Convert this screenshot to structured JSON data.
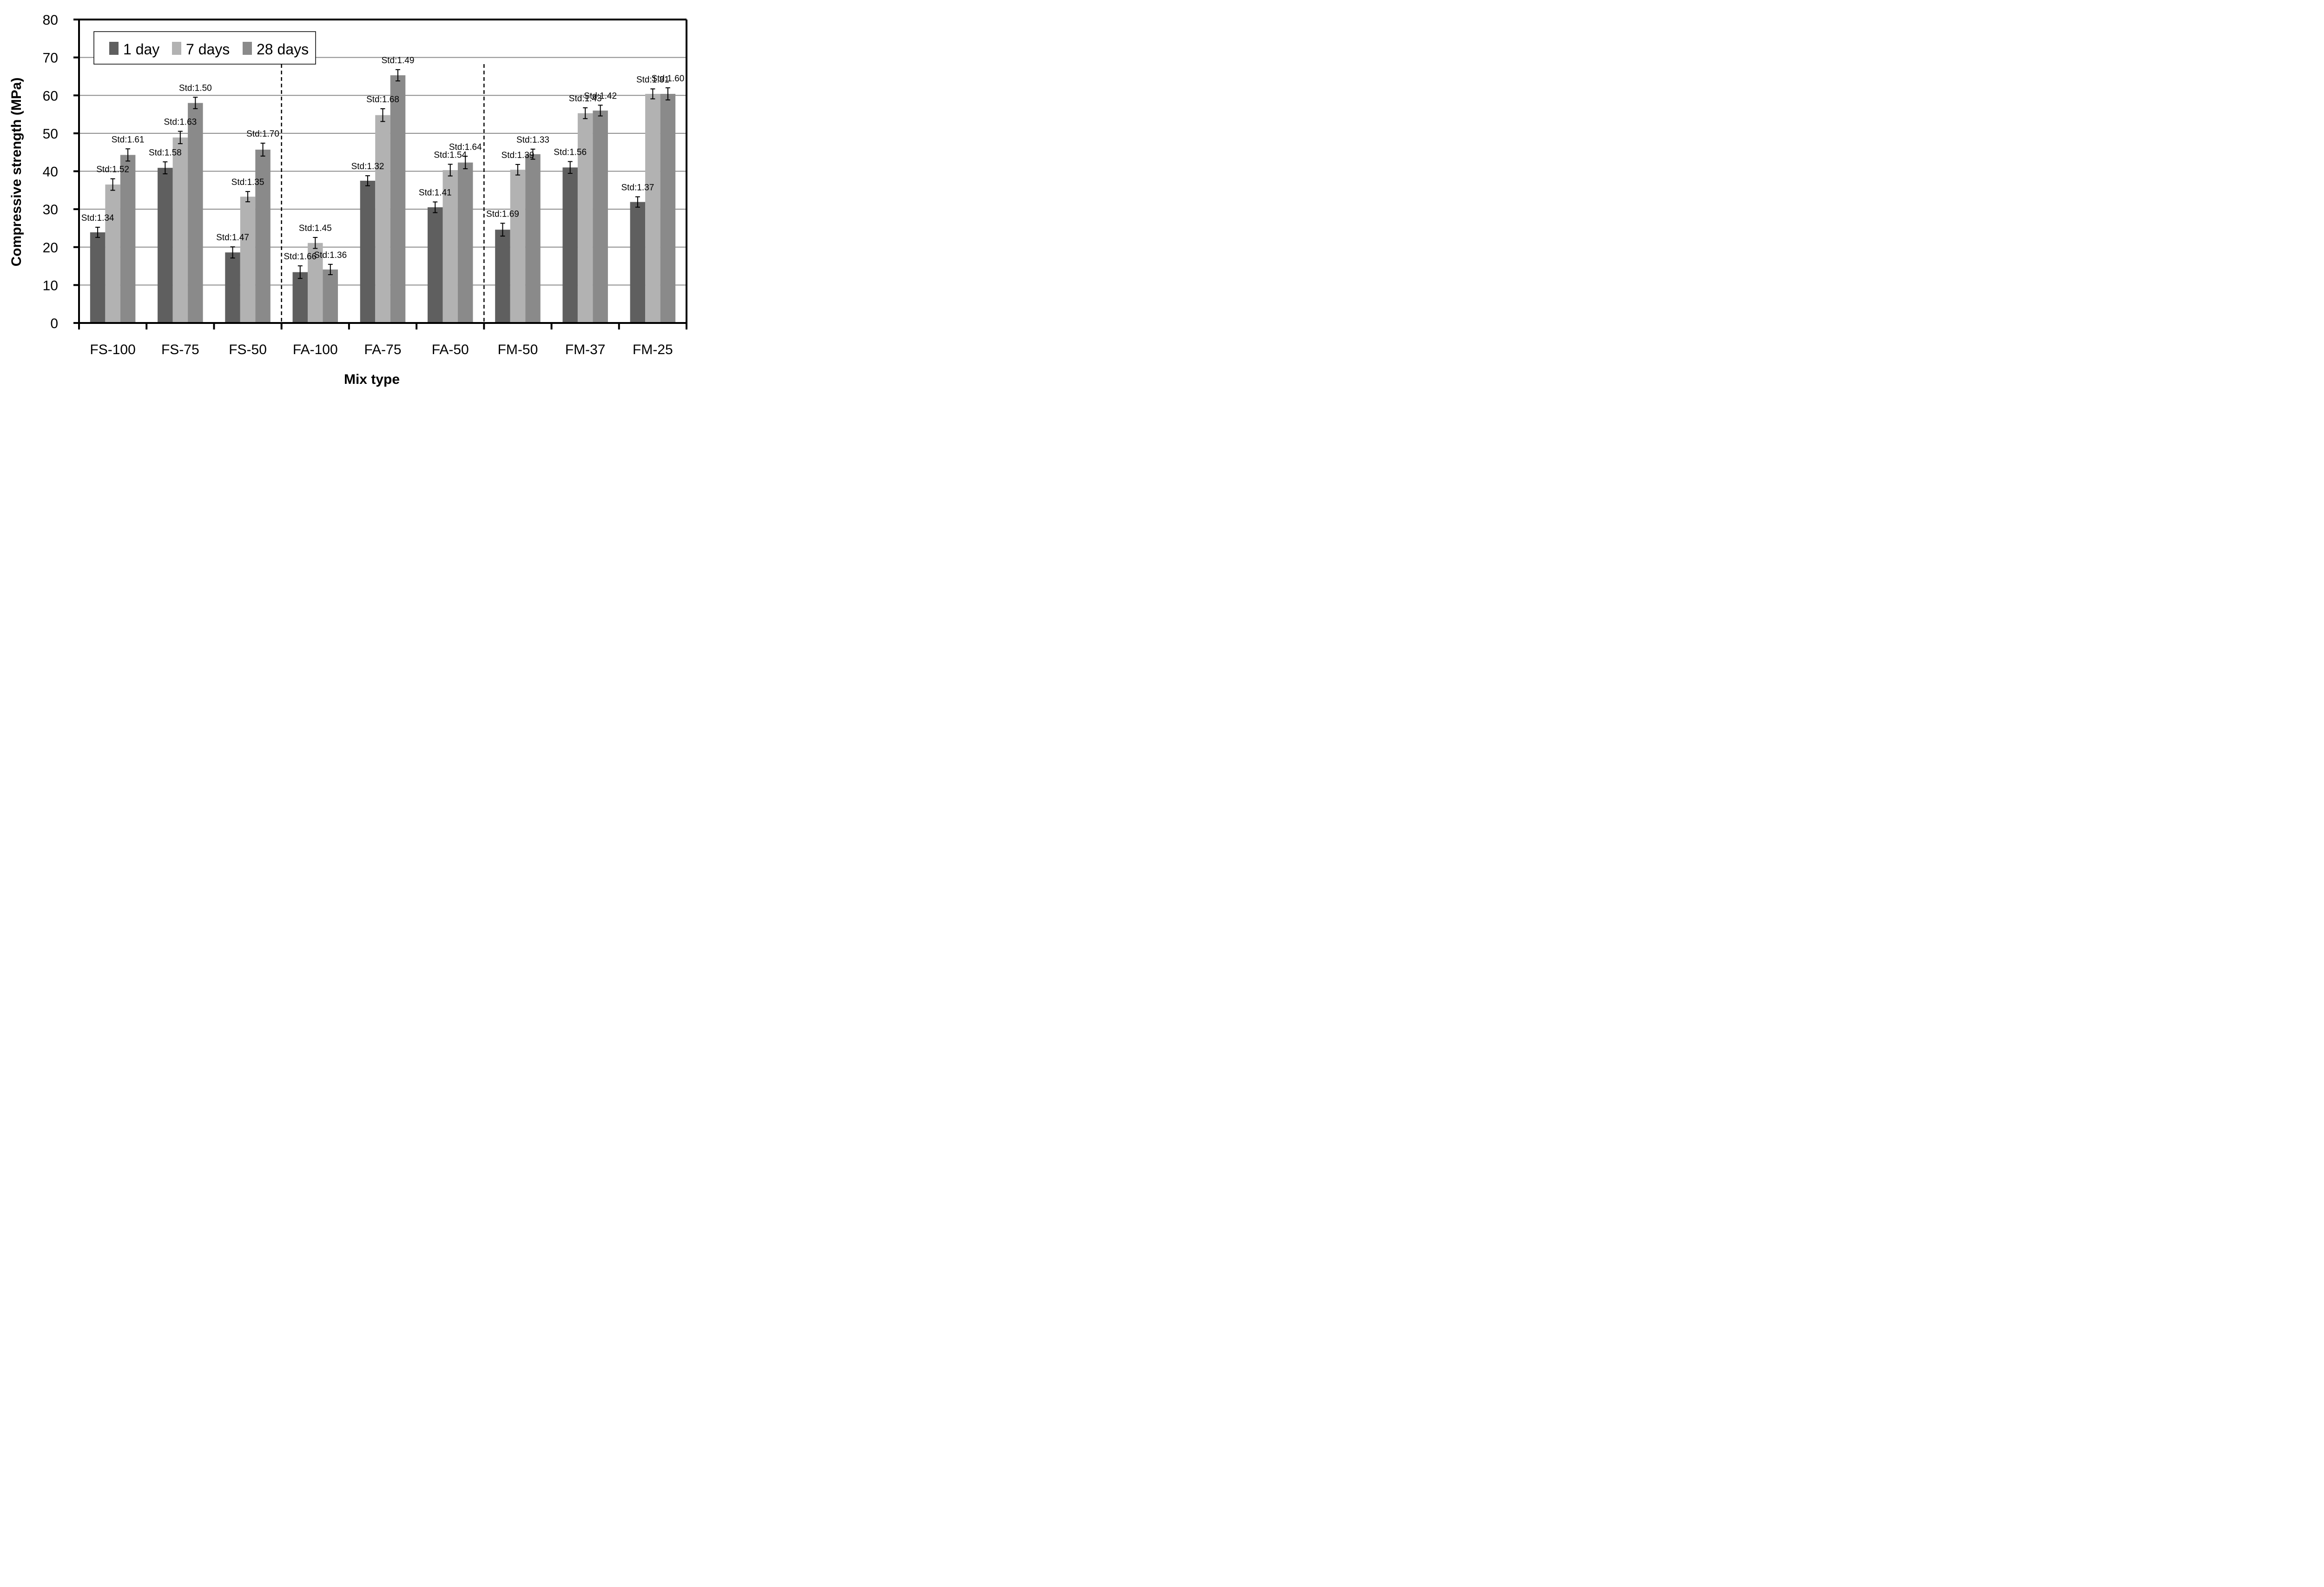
{
  "chart_data": {
    "type": "bar",
    "title": "",
    "xlabel": "Mix type",
    "ylabel": "Compressive strength (MPa)",
    "ylim": [
      0,
      80
    ],
    "yticks": [
      0,
      10,
      20,
      30,
      40,
      50,
      60,
      70,
      80
    ],
    "grid": true,
    "legend_position": "top-left",
    "categories": [
      "FS-100",
      "FS-75",
      "FS-50",
      "FA-100",
      "FA-75",
      "FA-50",
      "FM-50",
      "FM-37",
      "FM-25"
    ],
    "group_separators_after": [
      "FS-50",
      "FA-50"
    ],
    "series": [
      {
        "name": "1 day",
        "color": "#5f5f5f",
        "values": [
          23.9,
          40.9,
          18.6,
          13.4,
          37.5,
          30.5,
          24.6,
          41.0,
          31.9
        ],
        "std": [
          "Std:1.34",
          "Std:1.58",
          "Std:1.47",
          "Std:1.66",
          "Std:1.32",
          "Std:1.41",
          "Std:1.69",
          "Std:1.56",
          "Std:1.37"
        ]
      },
      {
        "name": "7 days",
        "color": "#b2b2b2",
        "values": [
          36.5,
          48.9,
          33.3,
          21.1,
          54.8,
          40.3,
          40.4,
          55.3,
          60.4
        ],
        "std": [
          "Std:1.52",
          "Std:1.63",
          "Std:1.35",
          "Std:1.45",
          "Std:1.68",
          "Std:1.54",
          "Std:1.39",
          "Std:1.43",
          "Std:1.31"
        ]
      },
      {
        "name": "28 days",
        "color": "#8a8a8a",
        "values": [
          44.3,
          58.0,
          45.7,
          14.1,
          65.3,
          42.3,
          44.5,
          56.0,
          60.4
        ],
        "std": [
          "Std:1.61",
          "Std:1.50",
          "Std:1.70",
          "Std:1.36",
          "Std:1.49",
          "Std:1.64",
          "Std:1.33",
          "Std:1.42",
          "Std:1.60"
        ]
      }
    ],
    "label_offsets_note": "std labels rendered near each bar"
  }
}
